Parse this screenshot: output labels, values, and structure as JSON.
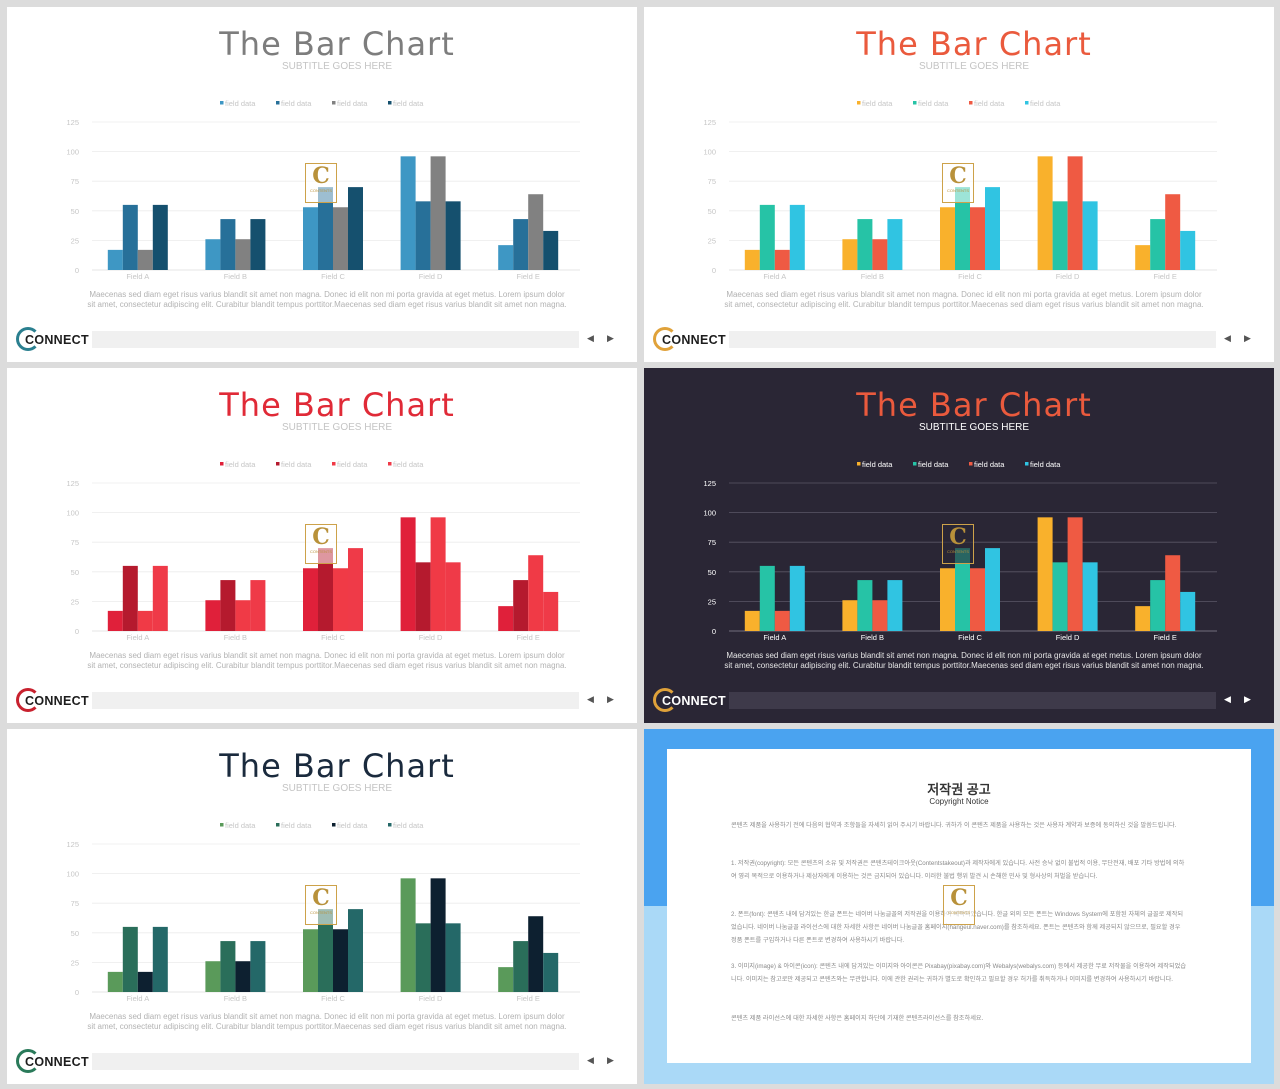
{
  "slides": [
    {
      "theme": "light",
      "title": "The Bar Chart",
      "subtitle": "SUBTITLE GOES HERE",
      "title_color": "#7d7d7d",
      "colors": [
        "#3e97c4",
        "#277099",
        "#818181",
        "#15506e"
      ],
      "legend": [
        "field data",
        "field data",
        "field data",
        "field data"
      ],
      "body": "Maecenas sed diam eget risus varius blandit sit amet non magna. Donec id elit non mi porta gravida at eget metus. Lorem ipsum dolor sit amet, consectetur adipiscing elit. Curabitur blandit tempus porttitor.Maecenas sed diam eget risus varius blandit sit amet non magna.",
      "logo": "CONNECT",
      "ring_color": "#2a7f8f",
      "nav_prev": "◀",
      "nav_next": "▶"
    },
    {
      "theme": "light",
      "title": "The Bar Chart",
      "subtitle": "SUBTITLE GOES HERE",
      "title_color": "#ea5a3d",
      "colors": [
        "#f9b12c",
        "#26c3a6",
        "#ef5a43",
        "#30c4e2"
      ],
      "legend": [
        "field data",
        "field data",
        "field data",
        "field data"
      ],
      "body": "Maecenas sed diam eget risus varius blandit sit amet non magna. Donec id elit non mi porta gravida at eget metus. Lorem ipsum dolor sit amet, consectetur adipiscing elit. Curabitur blandit tempus porttitor.Maecenas sed diam eget risus varius blandit sit amet non magna.",
      "logo": "CONNECT",
      "ring_color": "#e0a23a",
      "nav_prev": "◀",
      "nav_next": "▶"
    },
    {
      "theme": "light",
      "title": "The Bar Chart",
      "subtitle": "SUBTITLE GOES HERE",
      "title_color": "#e02a37",
      "colors": [
        "#e0203a",
        "#b51a2e",
        "#f03a46",
        "#ef3a48"
      ],
      "legend": [
        "field data",
        "field data",
        "field data",
        "field data"
      ],
      "body": "Maecenas sed diam eget risus varius blandit sit amet non magna. Donec id elit non mi porta gravida at eget metus. Lorem ipsum dolor sit amet, consectetur adipiscing elit. Curabitur blandit tempus porttitor.Maecenas sed diam eget risus varius blandit sit amet non magna.",
      "logo": "CONNECT",
      "ring_color": "#c8212e",
      "nav_prev": "◀",
      "nav_next": "▶"
    },
    {
      "theme": "dark",
      "title": "The Bar Chart",
      "subtitle": "SUBTITLE GOES HERE",
      "title_color": "#ea5a3d",
      "colors": [
        "#f9b12c",
        "#26c3a6",
        "#ef5a43",
        "#30c4e2"
      ],
      "legend": [
        "field data",
        "field data",
        "field data",
        "field data"
      ],
      "body": "Maecenas sed diam eget risus varius blandit sit amet non magna. Donec id elit non mi porta gravida at eget metus. Lorem ipsum dolor sit amet, consectetur adipiscing elit. Curabitur blandit tempus porttitor.Maecenas sed diam eget risus varius blandit sit amet non magna.",
      "logo": "CONNECT",
      "ring_color": "#e0a23a",
      "nav_prev": "◀",
      "nav_next": "▶"
    },
    {
      "theme": "light",
      "title": "The Bar Chart",
      "subtitle": "SUBTITLE GOES HERE",
      "title_color": "#1a2a3d",
      "colors": [
        "#5a9a5a",
        "#2a6e5a",
        "#0d2030",
        "#246868"
      ],
      "legend": [
        "field data",
        "field data",
        "field data",
        "field data"
      ],
      "body": "Maecenas sed diam eget risus varius blandit sit amet non magna. Donec id elit non mi porta gravida at eget metus. Lorem ipsum dolor sit amet, consectetur adipiscing elit. Curabitur blandit tempus porttitor.Maecenas sed diam eget risus varius blandit sit amet non magna.",
      "logo": "CONNECT",
      "ring_color": "#2a7a5a",
      "nav_prev": "◀",
      "nav_next": "▶"
    }
  ],
  "chart_data": {
    "type": "bar",
    "categories": [
      "Field A",
      "Field B",
      "Field C",
      "Field D",
      "Field E"
    ],
    "series": [
      {
        "name": "field data",
        "values": [
          17,
          26,
          53,
          96,
          21
        ]
      },
      {
        "name": "field data",
        "values": [
          55,
          43,
          70,
          58,
          43
        ]
      },
      {
        "name": "field data",
        "values": [
          17,
          26,
          53,
          96,
          64
        ]
      },
      {
        "name": "field data",
        "values": [
          55,
          43,
          70,
          58,
          33
        ]
      }
    ],
    "yticks": [
      0,
      25,
      50,
      75,
      100,
      125
    ],
    "ylim": [
      0,
      125
    ],
    "grid": true,
    "legend_position": "top"
  },
  "watermark": {
    "letter": "C",
    "text": "CONTENTS"
  },
  "notice": {
    "title": "저작권 공고",
    "subtitle": "Copyright Notice",
    "paragraphs": [
      "콘텐츠 제품을 사용하기 전에 다음의 협약과 조항들을 자세히 읽어 주시기 바랍니다. 귀하가 이 콘텐츠 제품을 사용하는 것은 사용자 계약과 보증에 동의하신 것을 말씀드립니다.",
      "1. 저작권(copyright): 모든 콘텐츠의 소유 및 저작권은 콘텐츠테이크아웃(Contentstakeout)과 제작자에게 있습니다. 사전 승낙 없이 불법적 이용, 무단전재, 배포 기타 방법에 의하여 영리 목적으로 이용하거나 제삼자에게 이용하는 것은 금지되어 있습니다. 이러한 불법 행위 발견 시 손해한 민사 및 형사상의 처벌을 받습니다.",
      "2. 폰트(font): 콘텐츠 내에 담겨있는 한글 폰트는 네이버 나눔글꼴의 저작권을 이용하여 제작되었습니다. 한글 외의 모든 폰트는 Windows System에 포함된 자체의 글꼴로 제작되었습니다. 네이버 나눔글꼴 라이선스에 대한 자세한 사항은 네이버 나눔글꼴 홈페이지(hangeul.naver.com)를 참조하세요. 폰트는 콘텐츠와 함께 제공되지 않으므로, 필요할 경우 정품 폰트를 구입하거나 다른 폰트로 변경하여 사용하시기 바랍니다.",
      "3. 이미지(image) & 아이콘(icon): 콘텐츠 내에 담겨있는 이미지와 아이콘은 Pixabay(pixabay.com)와 Webalys(webalys.com) 등에서 제공한 무료 저작물을 이용하여 제작되었습니다. 이미지는 참고로만 제공되고 콘텐츠와는 무관합니다. 이에 관한 권리는 귀하가 별도로 확인하고 필요할 경우 허가를 취득하거나 이미지를 변경하여 사용하시기 바랍니다.",
      "콘텐츠 제품 라이선스에 대한 자세한 사항은 홈페이지 하단에 기재한 콘텐츠라이선스를 참조하세요."
    ]
  }
}
